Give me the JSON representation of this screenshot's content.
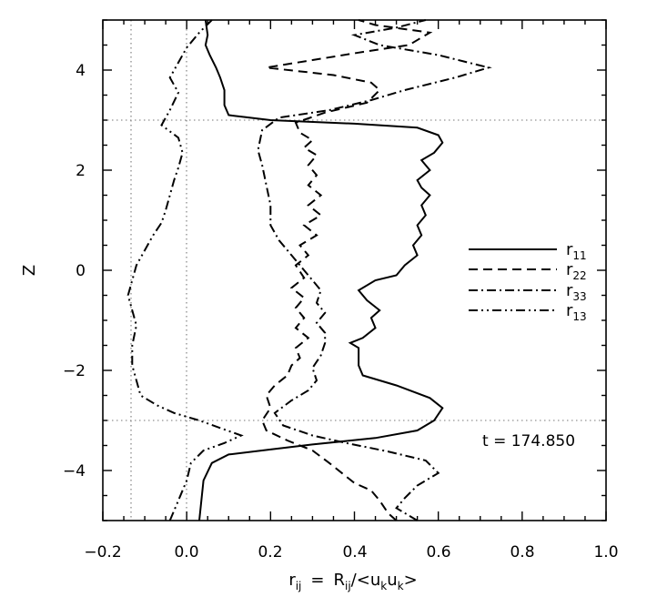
{
  "chart_data": {
    "type": "line",
    "xlabel": {
      "base": "r",
      "base_sub": "ij",
      "eq": "=",
      "R": "R",
      "R_sub": "ij",
      "slash": "/<",
      "u": "u",
      "k1": "k",
      "k2": "k",
      "close": ">"
    },
    "ylabel": "Z",
    "xlim": [
      -0.2,
      1.0
    ],
    "ylim": [
      -5,
      5
    ],
    "xticks": [
      -0.2,
      0.0,
      0.2,
      0.4,
      0.6,
      0.8,
      1.0
    ],
    "xtick_labels": [
      "−0.2",
      "0.0",
      "0.2",
      "0.4",
      "0.6",
      "0.8",
      "1.0"
    ],
    "yticks": [
      -4,
      -2,
      0,
      2,
      4
    ],
    "ytick_labels": [
      "−4",
      "−2",
      "0",
      "2",
      "4"
    ],
    "reference_lines": {
      "vertical": [
        -0.14,
        0.0
      ],
      "horizontal": [
        3.0,
        -3.0
      ]
    },
    "legend_placement": "right",
    "annotation": "t = 174.850",
    "series": [
      {
        "name": "r",
        "name_sub": "11",
        "dash": "solid",
        "points": [
          [
            0.03,
            -5.0
          ],
          [
            0.035,
            -4.6
          ],
          [
            0.04,
            -4.2
          ],
          [
            0.06,
            -3.85
          ],
          [
            0.1,
            -3.68
          ],
          [
            0.2,
            -3.58
          ],
          [
            0.3,
            -3.48
          ],
          [
            0.45,
            -3.35
          ],
          [
            0.55,
            -3.2
          ],
          [
            0.59,
            -3.0
          ],
          [
            0.61,
            -2.75
          ],
          [
            0.58,
            -2.55
          ],
          [
            0.5,
            -2.3
          ],
          [
            0.42,
            -2.1
          ],
          [
            0.41,
            -1.9
          ],
          [
            0.41,
            -1.55
          ],
          [
            0.39,
            -1.45
          ],
          [
            0.42,
            -1.35
          ],
          [
            0.45,
            -1.15
          ],
          [
            0.44,
            -0.95
          ],
          [
            0.46,
            -0.8
          ],
          [
            0.43,
            -0.6
          ],
          [
            0.41,
            -0.4
          ],
          [
            0.45,
            -0.2
          ],
          [
            0.5,
            -0.1
          ],
          [
            0.52,
            0.1
          ],
          [
            0.55,
            0.3
          ],
          [
            0.54,
            0.5
          ],
          [
            0.56,
            0.7
          ],
          [
            0.55,
            0.9
          ],
          [
            0.57,
            1.1
          ],
          [
            0.56,
            1.3
          ],
          [
            0.58,
            1.5
          ],
          [
            0.56,
            1.65
          ],
          [
            0.55,
            1.8
          ],
          [
            0.58,
            2.0
          ],
          [
            0.56,
            2.2
          ],
          [
            0.59,
            2.35
          ],
          [
            0.61,
            2.55
          ],
          [
            0.6,
            2.7
          ],
          [
            0.55,
            2.85
          ],
          [
            0.4,
            2.93
          ],
          [
            0.2,
            3.0
          ],
          [
            0.1,
            3.1
          ],
          [
            0.09,
            3.3
          ],
          [
            0.09,
            3.6
          ],
          [
            0.08,
            3.85
          ],
          [
            0.07,
            4.05
          ],
          [
            0.055,
            4.3
          ],
          [
            0.045,
            4.5
          ],
          [
            0.05,
            4.7
          ],
          [
            0.045,
            5.0
          ]
        ]
      },
      {
        "name": "r",
        "name_sub": "22",
        "dash": "dash",
        "points": [
          [
            0.5,
            -5.0
          ],
          [
            0.48,
            -4.85
          ],
          [
            0.46,
            -4.6
          ],
          [
            0.44,
            -4.4
          ],
          [
            0.4,
            -4.25
          ],
          [
            0.37,
            -4.05
          ],
          [
            0.34,
            -3.85
          ],
          [
            0.3,
            -3.6
          ],
          [
            0.24,
            -3.4
          ],
          [
            0.19,
            -3.2
          ],
          [
            0.18,
            -3.0
          ],
          [
            0.2,
            -2.75
          ],
          [
            0.19,
            -2.5
          ],
          [
            0.21,
            -2.3
          ],
          [
            0.24,
            -2.1
          ],
          [
            0.25,
            -1.9
          ],
          [
            0.27,
            -1.75
          ],
          [
            0.26,
            -1.55
          ],
          [
            0.29,
            -1.35
          ],
          [
            0.26,
            -1.15
          ],
          [
            0.28,
            -0.95
          ],
          [
            0.26,
            -0.75
          ],
          [
            0.28,
            -0.55
          ],
          [
            0.25,
            -0.35
          ],
          [
            0.28,
            -0.15
          ],
          [
            0.26,
            0.1
          ],
          [
            0.29,
            0.3
          ],
          [
            0.27,
            0.5
          ],
          [
            0.31,
            0.7
          ],
          [
            0.28,
            0.9
          ],
          [
            0.32,
            1.1
          ],
          [
            0.29,
            1.3
          ],
          [
            0.32,
            1.5
          ],
          [
            0.29,
            1.7
          ],
          [
            0.31,
            1.9
          ],
          [
            0.29,
            2.1
          ],
          [
            0.31,
            2.3
          ],
          [
            0.28,
            2.45
          ],
          [
            0.3,
            2.6
          ],
          [
            0.27,
            2.75
          ],
          [
            0.26,
            2.95
          ],
          [
            0.33,
            3.15
          ],
          [
            0.43,
            3.35
          ],
          [
            0.46,
            3.6
          ],
          [
            0.44,
            3.75
          ],
          [
            0.35,
            3.9
          ],
          [
            0.19,
            4.05
          ],
          [
            0.3,
            4.2
          ],
          [
            0.41,
            4.35
          ],
          [
            0.53,
            4.5
          ],
          [
            0.58,
            4.75
          ],
          [
            0.45,
            4.9
          ],
          [
            0.41,
            5.0
          ]
        ]
      },
      {
        "name": "r",
        "name_sub": "33",
        "dash": "dashdot",
        "points": [
          [
            0.55,
            -5.0
          ],
          [
            0.53,
            -4.9
          ],
          [
            0.5,
            -4.75
          ],
          [
            0.52,
            -4.55
          ],
          [
            0.55,
            -4.3
          ],
          [
            0.6,
            -4.05
          ],
          [
            0.57,
            -3.8
          ],
          [
            0.48,
            -3.62
          ],
          [
            0.38,
            -3.45
          ],
          [
            0.3,
            -3.3
          ],
          [
            0.23,
            -3.1
          ],
          [
            0.21,
            -2.85
          ],
          [
            0.25,
            -2.6
          ],
          [
            0.29,
            -2.4
          ],
          [
            0.31,
            -2.2
          ],
          [
            0.3,
            -1.95
          ],
          [
            0.32,
            -1.7
          ],
          [
            0.33,
            -1.45
          ],
          [
            0.33,
            -1.25
          ],
          [
            0.31,
            -1.05
          ],
          [
            0.33,
            -0.85
          ],
          [
            0.31,
            -0.65
          ],
          [
            0.32,
            -0.4
          ],
          [
            0.3,
            -0.2
          ],
          [
            0.28,
            0.0
          ],
          [
            0.25,
            0.3
          ],
          [
            0.22,
            0.6
          ],
          [
            0.2,
            0.9
          ],
          [
            0.2,
            1.3
          ],
          [
            0.19,
            1.7
          ],
          [
            0.18,
            2.1
          ],
          [
            0.17,
            2.4
          ],
          [
            0.18,
            2.8
          ],
          [
            0.22,
            3.05
          ],
          [
            0.34,
            3.2
          ],
          [
            0.44,
            3.4
          ],
          [
            0.52,
            3.6
          ],
          [
            0.64,
            3.85
          ],
          [
            0.72,
            4.05
          ],
          [
            0.6,
            4.3
          ],
          [
            0.46,
            4.5
          ],
          [
            0.4,
            4.7
          ],
          [
            0.5,
            4.85
          ],
          [
            0.57,
            5.0
          ]
        ]
      },
      {
        "name": "r",
        "name_sub": "13",
        "dash": "dashdotdot",
        "points": [
          [
            -0.04,
            -5.0
          ],
          [
            -0.02,
            -4.6
          ],
          [
            0.0,
            -4.2
          ],
          [
            0.01,
            -3.85
          ],
          [
            0.04,
            -3.6
          ],
          [
            0.09,
            -3.45
          ],
          [
            0.13,
            -3.3
          ],
          [
            0.08,
            -3.15
          ],
          [
            0.03,
            -3.0
          ],
          [
            -0.03,
            -2.85
          ],
          [
            -0.07,
            -2.7
          ],
          [
            -0.11,
            -2.5
          ],
          [
            -0.12,
            -2.2
          ],
          [
            -0.13,
            -1.9
          ],
          [
            -0.13,
            -1.5
          ],
          [
            -0.12,
            -1.1
          ],
          [
            -0.13,
            -0.8
          ],
          [
            -0.14,
            -0.5
          ],
          [
            -0.13,
            -0.2
          ],
          [
            -0.12,
            0.1
          ],
          [
            -0.1,
            0.4
          ],
          [
            -0.08,
            0.7
          ],
          [
            -0.06,
            0.95
          ],
          [
            -0.05,
            1.2
          ],
          [
            -0.04,
            1.5
          ],
          [
            -0.03,
            1.8
          ],
          [
            -0.02,
            2.05
          ],
          [
            -0.01,
            2.35
          ],
          [
            -0.02,
            2.65
          ],
          [
            -0.06,
            2.9
          ],
          [
            -0.04,
            3.2
          ],
          [
            -0.02,
            3.55
          ],
          [
            -0.04,
            3.85
          ],
          [
            -0.02,
            4.15
          ],
          [
            0.0,
            4.45
          ],
          [
            0.03,
            4.75
          ],
          [
            0.06,
            5.0
          ]
        ]
      }
    ]
  }
}
